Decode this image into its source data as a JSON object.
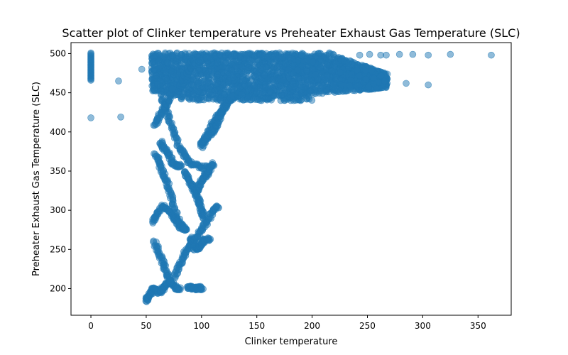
{
  "chart_data": {
    "type": "scatter",
    "title": "Scatter plot of Clinker temperature vs Preheater Exhaust Gas Temperature (SLC)",
    "xlabel": "Clinker temperature",
    "ylabel": "Preheater Exhaust Gas Temperature (SLC)",
    "xlim": [
      -18,
      380
    ],
    "ylim": [
      166,
      514
    ],
    "x_ticks": [
      0,
      50,
      100,
      150,
      200,
      250,
      300,
      350
    ],
    "y_ticks": [
      200,
      250,
      300,
      350,
      400,
      450,
      500
    ],
    "color": "#1f77b4",
    "alpha": 0.5,
    "grid": false,
    "outlier_points": [
      {
        "x": 25,
        "y": 465
      },
      {
        "x": 27,
        "y": 419
      },
      {
        "x": 46,
        "y": 480
      },
      {
        "x": 262,
        "y": 498
      },
      {
        "x": 267,
        "y": 498
      },
      {
        "x": 279,
        "y": 499
      },
      {
        "x": 291,
        "y": 499
      },
      {
        "x": 305,
        "y": 498
      },
      {
        "x": 325,
        "y": 499
      },
      {
        "x": 362,
        "y": 498
      },
      {
        "x": 285,
        "y": 462
      },
      {
        "x": 305,
        "y": 460
      },
      {
        "x": 252,
        "y": 499
      },
      {
        "x": 243,
        "y": 498
      }
    ],
    "zero_column": {
      "x": 0,
      "y_range": [
        466,
        501
      ],
      "extra_y": [
        418
      ]
    },
    "dense_region": {
      "x_range": [
        55,
        268
      ],
      "y_range": [
        440,
        501
      ]
    },
    "trajectories": [
      {
        "x": [
          80,
          85,
          92,
          105,
          130,
          160,
          200
        ],
        "y": [
          455,
          470,
          485,
          495,
          498,
          497,
          490
        ]
      },
      {
        "x": [
          60,
          65,
          70,
          75,
          80,
          85,
          90,
          100,
          110
        ],
        "y": [
          470,
          440,
          420,
          400,
          380,
          370,
          360,
          355,
          356
        ]
      },
      {
        "x": [
          100,
          105,
          110,
          115,
          120,
          125,
          130,
          135
        ],
        "y": [
          380,
          395,
          410,
          420,
          430,
          440,
          445,
          450
        ]
      },
      {
        "x": [
          58,
          62,
          66,
          70,
          74,
          78,
          82,
          86
        ],
        "y": [
          372,
          360,
          345,
          330,
          310,
          290,
          280,
          275
        ]
      },
      {
        "x": [
          85,
          88,
          92,
          95,
          98,
          100,
          102
        ],
        "y": [
          350,
          340,
          330,
          320,
          310,
          300,
          290
        ]
      },
      {
        "x": [
          90,
          92,
          95,
          98,
          100,
          103,
          107
        ],
        "y": [
          265,
          258,
          250,
          252,
          258,
          262,
          263
        ]
      },
      {
        "x": [
          55,
          60,
          65,
          70,
          75,
          80,
          85
        ],
        "y": [
          285,
          295,
          305,
          300,
          290,
          280,
          275
        ]
      },
      {
        "x": [
          57,
          62,
          66,
          70,
          74,
          78,
          80
        ],
        "y": [
          260,
          245,
          230,
          215,
          205,
          200,
          200
        ]
      },
      {
        "x": [
          50,
          52,
          55,
          57,
          60,
          62,
          65,
          68,
          72
        ],
        "y": [
          185,
          190,
          195,
          200,
          198,
          195,
          200,
          205,
          210
        ]
      },
      {
        "x": [
          76,
          80,
          85,
          90,
          95,
          100,
          105,
          110,
          115
        ],
        "y": [
          215,
          230,
          245,
          255,
          265,
          275,
          285,
          300,
          305
        ]
      },
      {
        "x": [
          88,
          90,
          92,
          95,
          98,
          100
        ],
        "y": [
          200,
          202,
          201,
          200,
          201,
          200
        ]
      },
      {
        "x": [
          100,
          103,
          106,
          110,
          114,
          118,
          122,
          128
        ],
        "y": [
          385,
          390,
          395,
          400,
          410,
          425,
          435,
          445
        ]
      },
      {
        "x": [
          95,
          98,
          101,
          104,
          107,
          110
        ],
        "y": [
          320,
          330,
          340,
          345,
          350,
          360
        ]
      },
      {
        "x": [
          58,
          62,
          66,
          70,
          74
        ],
        "y": [
          408,
          420,
          430,
          440,
          455
        ]
      },
      {
        "x": [
          63,
          66,
          70,
          74,
          78,
          82
        ],
        "y": [
          387,
          380,
          372,
          360,
          357,
          357
        ]
      }
    ]
  }
}
